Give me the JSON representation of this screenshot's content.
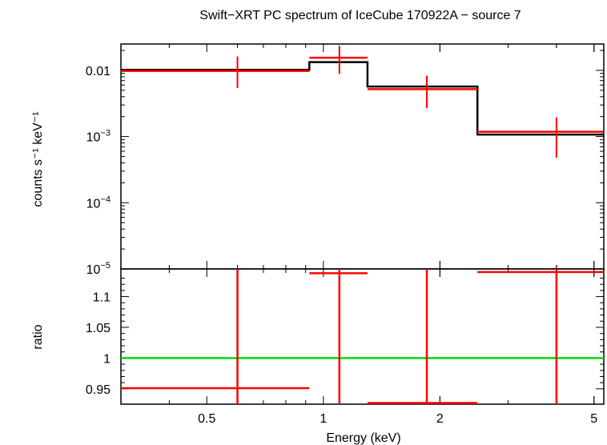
{
  "chart_data": [
    {
      "type": "line",
      "panel": "spectrum",
      "title": "Swift−XRT PC spectrum of IceCube 170922A − source 7",
      "xlabel": "Energy (keV)",
      "ylabel": "counts s⁻¹ keV⁻¹",
      "xscale": "log",
      "yscale": "log",
      "xlim": [
        0.3,
        5.3
      ],
      "ylim": [
        1e-05,
        0.025
      ],
      "ytick_labels": [
        {
          "value": 0.01,
          "base": "0.01",
          "exp": ""
        },
        {
          "value": 0.001,
          "base": "10",
          "exp": "−3"
        },
        {
          "value": 0.0001,
          "base": "10",
          "exp": "−4"
        },
        {
          "value": 1e-05,
          "base": "10",
          "exp": "−5"
        }
      ],
      "series": [
        {
          "role": "data",
          "color": "#ff0000",
          "points": [
            {
              "x": 0.6,
              "xlo": 0.3,
              "xhi": 0.92,
              "y": 0.0098,
              "ylo": 0.0054,
              "yhi": 0.0162
            },
            {
              "x": 1.1,
              "xlo": 0.92,
              "xhi": 1.3,
              "y": 0.0155,
              "ylo": 0.0088,
              "yhi": 0.0235
            },
            {
              "x": 1.85,
              "xlo": 1.3,
              "xhi": 2.5,
              "y": 0.0052,
              "ylo": 0.0027,
              "yhi": 0.0083
            },
            {
              "x": 4.0,
              "xlo": 2.5,
              "xhi": 5.3,
              "y": 0.00118,
              "ylo": 0.00048,
              "yhi": 0.00195
            }
          ]
        },
        {
          "role": "model",
          "color": "#000000",
          "steps": [
            {
              "xlo": 0.3,
              "xhi": 0.92,
              "y": 0.0102
            },
            {
              "xlo": 0.92,
              "xhi": 1.3,
              "y": 0.0133
            },
            {
              "xlo": 1.3,
              "xhi": 2.5,
              "y": 0.0057
            },
            {
              "xlo": 2.5,
              "xhi": 5.3,
              "y": 0.00107
            }
          ]
        }
      ]
    },
    {
      "type": "line",
      "panel": "ratio",
      "xlabel": "Energy (keV)",
      "ylabel": "ratio",
      "xscale": "log",
      "xlim": [
        0.3,
        5.3
      ],
      "ylim": [
        0.925,
        1.145
      ],
      "xticks": [
        {
          "value": 0.5,
          "label": "0.5"
        },
        {
          "value": 1,
          "label": "1"
        },
        {
          "value": 2,
          "label": "2"
        },
        {
          "value": 5,
          "label": "5"
        }
      ],
      "yticks": [
        {
          "value": 0.95,
          "label": "0.95"
        },
        {
          "value": 1,
          "label": "1"
        },
        {
          "value": 1.05,
          "label": "1.05"
        },
        {
          "value": 1.1,
          "label": "1.1"
        }
      ],
      "reference_line": {
        "y": 1,
        "color": "#00dd00"
      },
      "series": [
        {
          "role": "ratio",
          "color": "#ff0000",
          "points": [
            {
              "x": 0.6,
              "xlo": 0.3,
              "xhi": 0.92,
              "y": 0.951
            },
            {
              "x": 1.1,
              "xlo": 0.92,
              "xhi": 1.3,
              "y": 1.138
            },
            {
              "x": 1.85,
              "xlo": 1.3,
              "xhi": 2.5,
              "y": 0.927
            },
            {
              "x": 4.0,
              "xlo": 2.5,
              "xhi": 5.3,
              "y": 1.14
            }
          ]
        }
      ]
    }
  ]
}
